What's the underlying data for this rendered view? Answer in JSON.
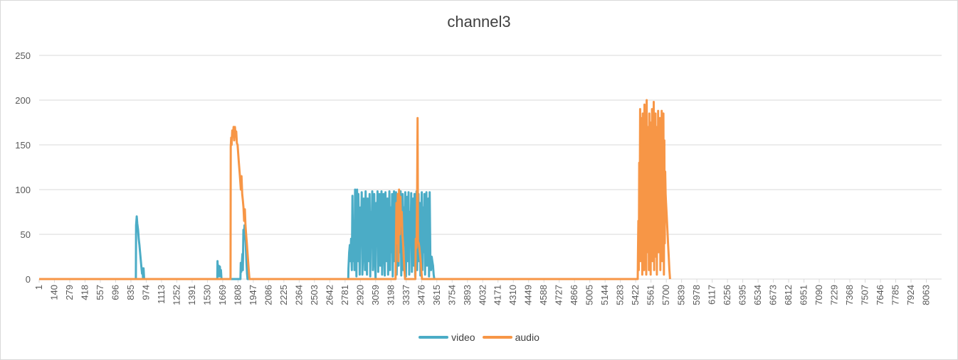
{
  "chart_data": {
    "type": "line",
    "title": "channel3",
    "xlabel": "",
    "ylabel": "",
    "ylim": [
      0,
      250
    ],
    "yticks": [
      0,
      50,
      100,
      150,
      200,
      250
    ],
    "xlim": [
      1,
      8202
    ],
    "xticks": [
      1,
      140,
      279,
      418,
      557,
      696,
      835,
      974,
      1113,
      1252,
      1391,
      1530,
      1669,
      1808,
      1947,
      2086,
      2225,
      2364,
      2503,
      2642,
      2781,
      2920,
      3059,
      3198,
      3337,
      3476,
      3615,
      3754,
      3893,
      4032,
      4171,
      4310,
      4449,
      4588,
      4727,
      4866,
      5005,
      5144,
      5283,
      5422,
      5561,
      5700,
      5839,
      5978,
      6117,
      6256,
      6395,
      6534,
      6673,
      6812,
      6951,
      7090,
      7229,
      7368,
      7507,
      7646,
      7785,
      7924,
      8063
    ],
    "grid": true,
    "legend_position": "bottom",
    "series": [
      {
        "name": "video",
        "color": "#4bacc6",
        "points": [
          [
            1,
            0
          ],
          [
            880,
            0
          ],
          [
            882,
            60
          ],
          [
            888,
            70
          ],
          [
            893,
            62
          ],
          [
            900,
            55
          ],
          [
            906,
            45
          ],
          [
            912,
            38
          ],
          [
            918,
            30
          ],
          [
            924,
            22
          ],
          [
            930,
            14
          ],
          [
            936,
            6
          ],
          [
            940,
            12
          ],
          [
            945,
            0
          ],
          [
            950,
            12
          ],
          [
            955,
            0
          ],
          [
            1620,
            0
          ],
          [
            1622,
            20
          ],
          [
            1627,
            5
          ],
          [
            1632,
            15
          ],
          [
            1638,
            3
          ],
          [
            1643,
            14
          ],
          [
            1648,
            6
          ],
          [
            1653,
            10
          ],
          [
            1658,
            0
          ],
          [
            1830,
            0
          ],
          [
            1833,
            18
          ],
          [
            1838,
            8
          ],
          [
            1843,
            18
          ],
          [
            1848,
            28
          ],
          [
            1852,
            10
          ],
          [
            1857,
            55
          ],
          [
            1862,
            45
          ],
          [
            1867,
            60
          ],
          [
            1872,
            52
          ],
          [
            1878,
            40
          ],
          [
            1884,
            22
          ],
          [
            1890,
            6
          ],
          [
            1895,
            0
          ],
          [
            2810,
            0
          ],
          [
            2812,
            12
          ],
          [
            2818,
            30
          ],
          [
            2824,
            38
          ],
          [
            2830,
            20
          ],
          [
            2836,
            45
          ],
          [
            2842,
            10
          ],
          [
            2848,
            93
          ],
          [
            2854,
            20
          ],
          [
            2860,
            60
          ],
          [
            2866,
            10
          ],
          [
            2872,
            100
          ],
          [
            2878,
            60
          ],
          [
            2884,
            3
          ],
          [
            2890,
            100
          ],
          [
            2896,
            20
          ],
          [
            2902,
            95
          ],
          [
            2908,
            50
          ],
          [
            2914,
            5
          ],
          [
            2920,
            80
          ],
          [
            2926,
            40
          ],
          [
            2932,
            97
          ],
          [
            2938,
            5
          ],
          [
            2944,
            30
          ],
          [
            2950,
            90
          ],
          [
            2956,
            60
          ],
          [
            2962,
            10
          ],
          [
            2968,
            98
          ],
          [
            2974,
            45
          ],
          [
            2980,
            5
          ],
          [
            2986,
            90
          ],
          [
            2992,
            70
          ],
          [
            2998,
            20
          ],
          [
            3004,
            95
          ],
          [
            3010,
            3
          ],
          [
            3016,
            75
          ],
          [
            3022,
            50
          ],
          [
            3028,
            98
          ],
          [
            3034,
            10
          ],
          [
            3040,
            60
          ],
          [
            3046,
            95
          ],
          [
            3052,
            20
          ],
          [
            3058,
            0
          ],
          [
            3064,
            85
          ],
          [
            3070,
            40
          ],
          [
            3076,
            98
          ],
          [
            3082,
            8
          ],
          [
            3088,
            70
          ],
          [
            3094,
            95
          ],
          [
            3100,
            15
          ],
          [
            3106,
            50
          ],
          [
            3112,
            98
          ],
          [
            3118,
            5
          ],
          [
            3124,
            60
          ],
          [
            3130,
            95
          ],
          [
            3136,
            30
          ],
          [
            3142,
            4
          ],
          [
            3148,
            97
          ],
          [
            3154,
            60
          ],
          [
            3160,
            20
          ],
          [
            3166,
            90
          ],
          [
            3172,
            5
          ],
          [
            3178,
            45
          ],
          [
            3184,
            98
          ],
          [
            3190,
            10
          ],
          [
            3196,
            80
          ],
          [
            3202,
            30
          ],
          [
            3208,
            95
          ],
          [
            3214,
            3
          ],
          [
            3220,
            70
          ],
          [
            3226,
            98
          ],
          [
            3232,
            20
          ],
          [
            3238,
            55
          ],
          [
            3244,
            97
          ],
          [
            3250,
            5
          ],
          [
            3256,
            40
          ],
          [
            3262,
            95
          ],
          [
            3268,
            15
          ],
          [
            3274,
            85
          ],
          [
            3280,
            30
          ],
          [
            3286,
            98
          ],
          [
            3292,
            4
          ],
          [
            3298,
            65
          ],
          [
            3304,
            95
          ],
          [
            3310,
            10
          ],
          [
            3316,
            80
          ],
          [
            3322,
            45
          ],
          [
            3328,
            97
          ],
          [
            3334,
            3
          ],
          [
            3340,
            60
          ],
          [
            3346,
            92
          ],
          [
            3352,
            20
          ],
          [
            3358,
            97
          ],
          [
            3364,
            5
          ],
          [
            3370,
            75
          ],
          [
            3376,
            40
          ],
          [
            3382,
            96
          ],
          [
            3388,
            8
          ],
          [
            3394,
            55
          ],
          [
            3400,
            90
          ],
          [
            3406,
            15
          ],
          [
            3412,
            95
          ],
          [
            3418,
            3
          ],
          [
            3424,
            70
          ],
          [
            3430,
            98
          ],
          [
            3436,
            10
          ],
          [
            3442,
            50
          ],
          [
            3448,
            95
          ],
          [
            3454,
            20
          ],
          [
            3460,
            85
          ],
          [
            3466,
            4
          ],
          [
            3472,
            60
          ],
          [
            3478,
            97
          ],
          [
            3484,
            10
          ],
          [
            3490,
            80
          ],
          [
            3496,
            30
          ],
          [
            3502,
            95
          ],
          [
            3508,
            5
          ],
          [
            3514,
            65
          ],
          [
            3520,
            97
          ],
          [
            3526,
            15
          ],
          [
            3532,
            45
          ],
          [
            3538,
            90
          ],
          [
            3544,
            3
          ],
          [
            3550,
            97
          ],
          [
            3556,
            20
          ],
          [
            3562,
            10
          ],
          [
            3568,
            25
          ],
          [
            3574,
            20
          ],
          [
            3580,
            15
          ],
          [
            3586,
            5
          ],
          [
            3592,
            0
          ]
        ]
      },
      {
        "name": "audio",
        "color": "#f79646",
        "points": [
          [
            1,
            0
          ],
          [
            1740,
            0
          ],
          [
            1742,
            148
          ],
          [
            1746,
            158
          ],
          [
            1750,
            150
          ],
          [
            1756,
            166
          ],
          [
            1762,
            160
          ],
          [
            1768,
            170
          ],
          [
            1774,
            155
          ],
          [
            1780,
            170
          ],
          [
            1786,
            160
          ],
          [
            1792,
            165
          ],
          [
            1798,
            152
          ],
          [
            1804,
            150
          ],
          [
            1810,
            140
          ],
          [
            1816,
            130
          ],
          [
            1822,
            120
          ],
          [
            1828,
            110
          ],
          [
            1834,
            100
          ],
          [
            1840,
            115
          ],
          [
            1846,
            95
          ],
          [
            1852,
            88
          ],
          [
            1858,
            80
          ],
          [
            1864,
            65
          ],
          [
            1870,
            78
          ],
          [
            1876,
            60
          ],
          [
            1882,
            50
          ],
          [
            1888,
            40
          ],
          [
            1894,
            30
          ],
          [
            1900,
            20
          ],
          [
            1906,
            10
          ],
          [
            1912,
            0
          ],
          [
            3240,
            0
          ],
          [
            3242,
            30
          ],
          [
            3248,
            85
          ],
          [
            3254,
            40
          ],
          [
            3260,
            95
          ],
          [
            3266,
            20
          ],
          [
            3272,
            100
          ],
          [
            3278,
            50
          ],
          [
            3284,
            92
          ],
          [
            3290,
            60
          ],
          [
            3296,
            75
          ],
          [
            3302,
            50
          ],
          [
            3308,
            40
          ],
          [
            3314,
            25
          ],
          [
            3320,
            10
          ],
          [
            3326,
            0
          ],
          [
            3420,
            0
          ],
          [
            3424,
            45
          ],
          [
            3430,
            35
          ],
          [
            3436,
            100
          ],
          [
            3440,
            180
          ],
          [
            3444,
            42
          ],
          [
            3450,
            40
          ],
          [
            3456,
            35
          ],
          [
            3462,
            28
          ],
          [
            3468,
            20
          ],
          [
            3474,
            10
          ],
          [
            3480,
            0
          ],
          [
            5440,
            0
          ],
          [
            5442,
            25
          ],
          [
            5446,
            65
          ],
          [
            5450,
            10
          ],
          [
            5454,
            130
          ],
          [
            5458,
            50
          ],
          [
            5462,
            190
          ],
          [
            5466,
            20
          ],
          [
            5470,
            180
          ],
          [
            5474,
            40
          ],
          [
            5478,
            150
          ],
          [
            5482,
            5
          ],
          [
            5486,
            185
          ],
          [
            5490,
            60
          ],
          [
            5494,
            120
          ],
          [
            5498,
            10
          ],
          [
            5502,
            195
          ],
          [
            5506,
            40
          ],
          [
            5510,
            160
          ],
          [
            5514,
            80
          ],
          [
            5518,
            5
          ],
          [
            5522,
            200
          ],
          [
            5526,
            30
          ],
          [
            5530,
            170
          ],
          [
            5534,
            60
          ],
          [
            5538,
            130
          ],
          [
            5542,
            10
          ],
          [
            5546,
            185
          ],
          [
            5550,
            50
          ],
          [
            5554,
            175
          ],
          [
            5558,
            5
          ],
          [
            5562,
            150
          ],
          [
            5566,
            90
          ],
          [
            5570,
            190
          ],
          [
            5574,
            20
          ],
          [
            5578,
            160
          ],
          [
            5582,
            40
          ],
          [
            5586,
            198
          ],
          [
            5590,
            10
          ],
          [
            5594,
            140
          ],
          [
            5598,
            60
          ],
          [
            5602,
            185
          ],
          [
            5606,
            25
          ],
          [
            5610,
            170
          ],
          [
            5614,
            5
          ],
          [
            5618,
            150
          ],
          [
            5622,
            80
          ],
          [
            5626,
            188
          ],
          [
            5630,
            30
          ],
          [
            5634,
            120
          ],
          [
            5638,
            55
          ],
          [
            5642,
            180
          ],
          [
            5646,
            10
          ],
          [
            5650,
            160
          ],
          [
            5654,
            45
          ],
          [
            5658,
            188
          ],
          [
            5662,
            20
          ],
          [
            5666,
            130
          ],
          [
            5670,
            70
          ],
          [
            5674,
            185
          ],
          [
            5678,
            5
          ],
          [
            5682,
            155
          ],
          [
            5686,
            40
          ],
          [
            5690,
            120
          ],
          [
            5694,
            95
          ],
          [
            5698,
            85
          ],
          [
            5704,
            70
          ],
          [
            5710,
            55
          ],
          [
            5716,
            40
          ],
          [
            5722,
            25
          ],
          [
            5728,
            10
          ],
          [
            5734,
            0
          ]
        ]
      }
    ]
  }
}
